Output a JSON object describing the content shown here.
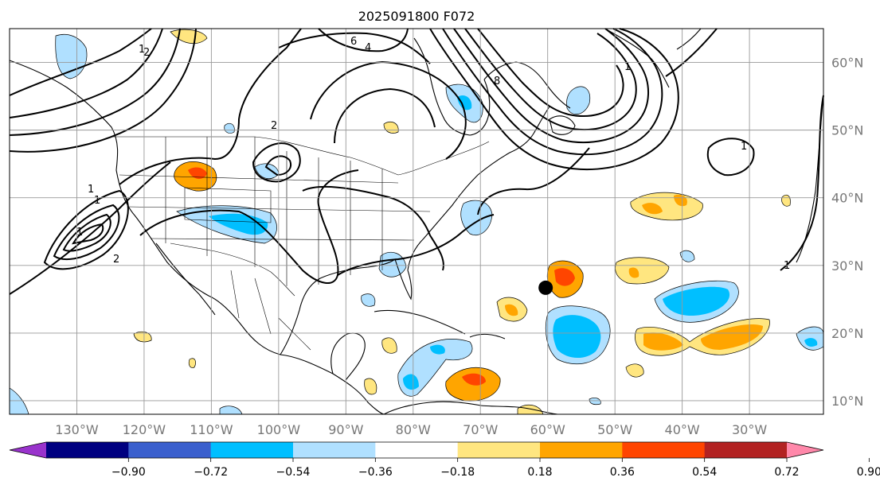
{
  "title": "2025091800 F072",
  "map": {
    "lon_range": [
      -140,
      -19
    ],
    "lat_range": [
      8,
      65
    ],
    "lon_ticks": [
      {
        "value": -130,
        "label": "130°W"
      },
      {
        "value": -120,
        "label": "120°W"
      },
      {
        "value": -110,
        "label": "110°W"
      },
      {
        "value": -100,
        "label": "100°W"
      },
      {
        "value": -90,
        "label": "90°W"
      },
      {
        "value": -80,
        "label": "80°W"
      },
      {
        "value": -70,
        "label": "70°W"
      },
      {
        "value": -60,
        "label": "60°W"
      },
      {
        "value": -50,
        "label": "50°W"
      },
      {
        "value": -40,
        "label": "40°W"
      },
      {
        "value": -30,
        "label": "30°W"
      }
    ],
    "lat_ticks": [
      {
        "value": 10,
        "label": "10°N"
      },
      {
        "value": 20,
        "label": "20°N"
      },
      {
        "value": 30,
        "label": "30°N"
      },
      {
        "value": 40,
        "label": "40°N"
      },
      {
        "value": 50,
        "label": "50°N"
      },
      {
        "value": 60,
        "label": "60°N"
      }
    ],
    "marker": {
      "lon": -60.3,
      "lat": 26.7
    },
    "contour_labels": [
      "1",
      "1",
      "1",
      "2",
      "1",
      "2",
      "4",
      "6",
      "8",
      "1",
      "1",
      "2",
      "1"
    ]
  },
  "colorbar": {
    "levels": [
      "−0.90",
      "−0.72",
      "−0.54",
      "−0.36",
      "−0.18",
      "0.18",
      "0.36",
      "0.54",
      "0.72",
      "0.90"
    ],
    "colors": [
      "#9933cc",
      "#000080",
      "#3a5fcd",
      "#00bfff",
      "#b0e0ff",
      "#ffffff",
      "#ffe680",
      "#ffa500",
      "#ff4500",
      "#b22222",
      "#ff88aa"
    ]
  }
}
